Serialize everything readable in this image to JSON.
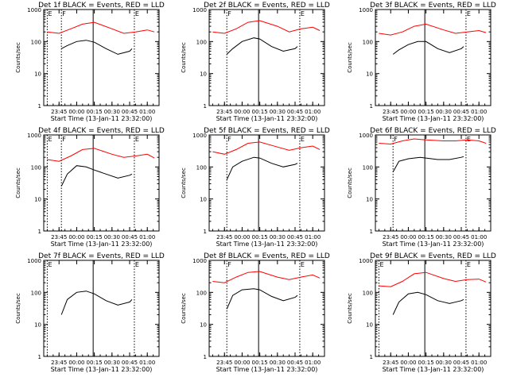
{
  "colors": {
    "events": "#000000",
    "lld": "#ff0000",
    "background": "#ffffff"
  },
  "chart_data": [
    {
      "type": "line",
      "title": "Det 1f BLACK = Events, RED = LLD",
      "xlabel": "Start Time (13-Jan-11 23:32:00)",
      "ylabel": "Counts/sec",
      "yscale": "log",
      "ylim": [
        1,
        1000
      ],
      "y_ticks": [
        "1",
        "10",
        "100",
        "1000"
      ],
      "x_ticks": [
        "23:45",
        "00:00",
        "00:15",
        "00:30",
        "00:45",
        "01:00"
      ],
      "markers": [
        {
          "label": "E",
          "time": "23:35"
        },
        {
          "label": "F",
          "time": "23:47"
        },
        {
          "label": "E",
          "time": "00:49"
        }
      ],
      "vline": "00:14",
      "series": [
        {
          "name": "Events",
          "color": "#000000",
          "x": [
            "23:47",
            "23:52",
            "00:00",
            "00:08",
            "00:15",
            "00:25",
            "00:35",
            "00:45",
            "00:47"
          ],
          "y": [
            60,
            75,
            100,
            110,
            95,
            60,
            40,
            50,
            60
          ]
        },
        {
          "name": "LLD",
          "color": "#ff0000",
          "x": [
            "23:35",
            "23:45",
            "23:55",
            "00:05",
            "00:15",
            "00:30",
            "00:40",
            "00:50",
            "01:00",
            "01:06"
          ],
          "y": [
            200,
            180,
            250,
            350,
            400,
            250,
            180,
            200,
            230,
            200
          ]
        }
      ]
    },
    {
      "type": "line",
      "title": "Det 2f BLACK = Events, RED = LLD",
      "xlabel": "Start Time (13-Jan-11 23:32:00)",
      "ylabel": "Counts/sec",
      "yscale": "log",
      "ylim": [
        1,
        1000
      ],
      "y_ticks": [
        "1",
        "10",
        "100",
        "1000"
      ],
      "x_ticks": [
        "23:45",
        "00:00",
        "00:15",
        "00:30",
        "00:45",
        "01:00"
      ],
      "markers": [
        {
          "label": "F",
          "time": "23:47"
        },
        {
          "label": "E",
          "time": "00:49"
        }
      ],
      "vline": "00:14",
      "series": [
        {
          "name": "Events",
          "color": "#000000",
          "x": [
            "23:47",
            "23:52",
            "00:00",
            "00:10",
            "00:15",
            "00:25",
            "00:35",
            "00:45",
            "00:47"
          ],
          "y": [
            40,
            60,
            100,
            130,
            120,
            70,
            50,
            60,
            70
          ]
        },
        {
          "name": "LLD",
          "color": "#ff0000",
          "x": [
            "23:35",
            "23:45",
            "23:55",
            "00:05",
            "00:15",
            "00:30",
            "00:40",
            "00:50",
            "01:00",
            "01:06"
          ],
          "y": [
            200,
            180,
            250,
            400,
            450,
            300,
            200,
            250,
            280,
            220
          ]
        }
      ]
    },
    {
      "type": "line",
      "title": "Det 3f BLACK = Events, RED = LLD",
      "xlabel": "Start Time (13-Jan-11 23:32:00)",
      "ylabel": "Counts/sec",
      "yscale": "log",
      "ylim": [
        1,
        1000
      ],
      "y_ticks": [
        "1",
        "10",
        "100",
        "1000"
      ],
      "x_ticks": [
        "23:45",
        "00:00",
        "00:15",
        "00:30",
        "00:45",
        "01:00"
      ],
      "markers": [
        {
          "label": "E",
          "time": "00:49"
        }
      ],
      "vline": "00:14",
      "series": [
        {
          "name": "Events",
          "color": "#000000",
          "x": [
            "23:47",
            "23:52",
            "00:00",
            "00:08",
            "00:15",
            "00:25",
            "00:35",
            "00:45",
            "00:47"
          ],
          "y": [
            40,
            55,
            80,
            100,
            100,
            60,
            45,
            60,
            70
          ]
        },
        {
          "name": "LLD",
          "color": "#ff0000",
          "x": [
            "23:35",
            "23:45",
            "23:55",
            "00:05",
            "00:15",
            "00:30",
            "00:40",
            "00:50",
            "01:00",
            "01:06"
          ],
          "y": [
            180,
            160,
            200,
            300,
            350,
            230,
            180,
            200,
            220,
            190
          ]
        }
      ]
    },
    {
      "type": "line",
      "title": "Det 4f BLACK = Events, RED = LLD",
      "xlabel": "Start Time (13-Jan-11 23:32:00)",
      "ylabel": "Counts/sec",
      "yscale": "log",
      "ylim": [
        1,
        1000
      ],
      "y_ticks": [
        "1",
        "10",
        "100",
        "1000"
      ],
      "x_ticks": [
        "23:45",
        "00:00",
        "00:15",
        "00:30",
        "00:45",
        "01:00"
      ],
      "markers": [
        {
          "label": "E",
          "time": "23:35"
        },
        {
          "label": "F",
          "time": "23:47"
        },
        {
          "label": "E",
          "time": "00:49"
        }
      ],
      "vline": "00:14",
      "series": [
        {
          "name": "Events",
          "color": "#000000",
          "x": [
            "23:47",
            "23:52",
            "00:00",
            "00:08",
            "00:15",
            "00:25",
            "00:35",
            "00:45",
            "00:47"
          ],
          "y": [
            25,
            60,
            110,
            100,
            80,
            60,
            45,
            55,
            60
          ]
        },
        {
          "name": "LLD",
          "color": "#ff0000",
          "x": [
            "23:35",
            "23:45",
            "23:55",
            "00:05",
            "00:15",
            "00:30",
            "00:40",
            "00:50",
            "01:00",
            "01:06"
          ],
          "y": [
            170,
            150,
            220,
            350,
            380,
            250,
            200,
            220,
            250,
            190
          ]
        }
      ]
    },
    {
      "type": "line",
      "title": "Det 5f BLACK = Events, RED = LLD",
      "xlabel": "Start Time (13-Jan-11 23:32:00)",
      "ylabel": "Counts/sec",
      "yscale": "log",
      "ylim": [
        1,
        1000
      ],
      "y_ticks": [
        "1",
        "10",
        "100",
        "1000"
      ],
      "x_ticks": [
        "23:45",
        "00:00",
        "00:15",
        "00:30",
        "00:45",
        "01:00"
      ],
      "markers": [
        {
          "label": "F",
          "time": "23:47"
        },
        {
          "label": "E",
          "time": "00:49"
        }
      ],
      "vline": "00:14",
      "series": [
        {
          "name": "Events",
          "color": "#000000",
          "x": [
            "23:47",
            "23:52",
            "00:00",
            "00:10",
            "00:15",
            "00:25",
            "00:35",
            "00:45",
            "00:47"
          ],
          "y": [
            40,
            100,
            150,
            200,
            190,
            130,
            100,
            120,
            130
          ]
        },
        {
          "name": "LLD",
          "color": "#ff0000",
          "x": [
            "23:35",
            "23:45",
            "23:55",
            "00:05",
            "00:15",
            "00:30",
            "00:40",
            "00:50",
            "01:00",
            "01:06"
          ],
          "y": [
            300,
            250,
            350,
            550,
            600,
            420,
            330,
            400,
            450,
            350
          ]
        }
      ]
    },
    {
      "type": "line",
      "title": "Det 6f BLACK = Events, RED = LLD",
      "xlabel": "Start Time (13-Jan-11 23:32:00)",
      "ylabel": "Counts/sec",
      "yscale": "log",
      "ylim": [
        1,
        1000
      ],
      "y_ticks": [
        "1",
        "10",
        "100",
        "1000"
      ],
      "x_ticks": [
        "23:45",
        "00:00",
        "00:15",
        "00:30",
        "00:45",
        "01:00"
      ],
      "markers": [
        {
          "label": "F",
          "time": "23:47"
        },
        {
          "label": "E",
          "time": "00:49"
        }
      ],
      "vline": "00:14",
      "series": [
        {
          "name": "Events",
          "color": "#000000",
          "x": [
            "23:47",
            "23:52",
            "00:00",
            "00:10",
            "00:15",
            "00:25",
            "00:35",
            "00:45",
            "00:47"
          ],
          "y": [
            70,
            150,
            180,
            200,
            190,
            170,
            170,
            200,
            210
          ]
        },
        {
          "name": "LLD",
          "color": "#ff0000",
          "x": [
            "23:35",
            "23:45",
            "23:55",
            "00:05",
            "00:15",
            "00:30",
            "00:40",
            "00:50",
            "01:00",
            "01:06"
          ],
          "y": [
            550,
            520,
            650,
            750,
            700,
            650,
            650,
            700,
            650,
            550
          ]
        }
      ]
    },
    {
      "type": "line",
      "title": "Det 7f BLACK = Events, RED = LLD",
      "xlabel": "Start Time (13-Jan-11 23:32:00)",
      "ylabel": "Counts/sec",
      "yscale": "log",
      "ylim": [
        1,
        1000
      ],
      "y_ticks": [
        "1",
        "10",
        "100",
        "1000"
      ],
      "x_ticks": [
        "23:45",
        "00:00",
        "00:15",
        "00:30",
        "00:45",
        "01:00"
      ],
      "markers": [
        {
          "label": "E",
          "time": "23:35"
        },
        {
          "label": "E",
          "time": "00:49"
        }
      ],
      "vline": "00:14",
      "series": [
        {
          "name": "Events",
          "color": "#000000",
          "x": [
            "23:47",
            "23:52",
            "00:00",
            "00:08",
            "00:15",
            "00:25",
            "00:35",
            "00:45",
            "00:47"
          ],
          "y": [
            20,
            60,
            100,
            110,
            90,
            55,
            40,
            50,
            60
          ]
        }
      ]
    },
    {
      "type": "line",
      "title": "Det 8f BLACK = Events, RED = LLD",
      "xlabel": "Start Time (13-Jan-11 23:32:00)",
      "ylabel": "Counts/sec",
      "yscale": "log",
      "ylim": [
        1,
        1000
      ],
      "y_ticks": [
        "1",
        "10",
        "100",
        "1000"
      ],
      "x_ticks": [
        "23:45",
        "00:00",
        "00:15",
        "00:30",
        "00:45",
        "01:00"
      ],
      "markers": [
        {
          "label": "F",
          "time": "23:47"
        },
        {
          "label": "E",
          "time": "00:49"
        }
      ],
      "vline": "00:14",
      "series": [
        {
          "name": "Events",
          "color": "#000000",
          "x": [
            "23:47",
            "23:52",
            "00:00",
            "00:10",
            "00:15",
            "00:25",
            "00:35",
            "00:45",
            "00:47"
          ],
          "y": [
            30,
            80,
            120,
            130,
            120,
            75,
            55,
            70,
            80
          ]
        },
        {
          "name": "LLD",
          "color": "#ff0000",
          "x": [
            "23:35",
            "23:45",
            "23:55",
            "00:05",
            "00:15",
            "00:30",
            "00:40",
            "00:50",
            "01:00",
            "01:06"
          ],
          "y": [
            220,
            200,
            300,
            420,
            450,
            300,
            250,
            300,
            350,
            280
          ]
        }
      ]
    },
    {
      "type": "line",
      "title": "Det 9f BLACK = Events, RED = LLD",
      "xlabel": "Start Time (13-Jan-11 23:32:00)",
      "ylabel": "Counts/sec",
      "yscale": "log",
      "ylim": [
        1,
        1000
      ],
      "y_ticks": [
        "1",
        "10",
        "100",
        "1000"
      ],
      "x_ticks": [
        "23:45",
        "00:00",
        "00:15",
        "00:30",
        "00:45",
        "01:00"
      ],
      "markers": [
        {
          "label": "E",
          "time": "23:35"
        },
        {
          "label": "E",
          "time": "00:49"
        }
      ],
      "vline": "00:14",
      "series": [
        {
          "name": "Events",
          "color": "#000000",
          "x": [
            "23:47",
            "23:52",
            "00:00",
            "00:08",
            "00:15",
            "00:25",
            "00:35",
            "00:45",
            "00:47"
          ],
          "y": [
            20,
            50,
            90,
            100,
            85,
            55,
            45,
            55,
            60
          ]
        },
        {
          "name": "LLD",
          "color": "#ff0000",
          "x": [
            "23:35",
            "23:45",
            "23:55",
            "00:05",
            "00:15",
            "00:30",
            "00:40",
            "00:50",
            "01:00",
            "01:06"
          ],
          "y": [
            160,
            150,
            220,
            380,
            420,
            270,
            220,
            250,
            260,
            210
          ]
        }
      ]
    }
  ]
}
